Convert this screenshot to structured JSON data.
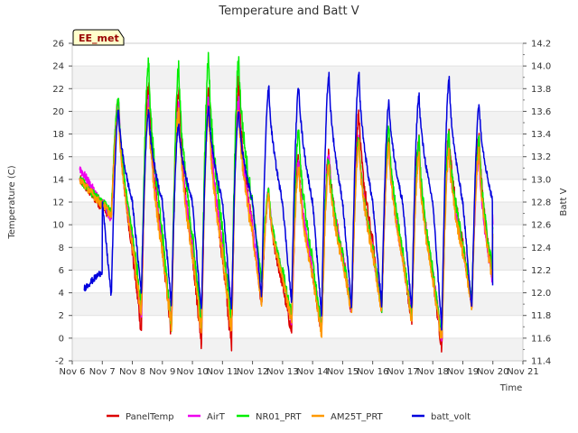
{
  "chart_data": {
    "type": "line",
    "title": "Temperature and Batt V",
    "xlabel": "Time",
    "ylabel": "Temperature (C)",
    "y2label": "Batt V",
    "site_label": "EE_met",
    "xlim": [
      6,
      21
    ],
    "ylim": [
      -2,
      26
    ],
    "y2lim": [
      11.4,
      14.2
    ],
    "x_ticks": [
      {
        "v": 6,
        "label": "Nov 6"
      },
      {
        "v": 7,
        "label": "Nov 7"
      },
      {
        "v": 8,
        "label": "Nov 8"
      },
      {
        "v": 9,
        "label": "Nov 9"
      },
      {
        "v": 10,
        "label": "Nov 10"
      },
      {
        "v": 11,
        "label": "Nov 11"
      },
      {
        "v": 12,
        "label": "Nov 12"
      },
      {
        "v": 13,
        "label": "Nov 13"
      },
      {
        "v": 14,
        "label": "Nov 14"
      },
      {
        "v": 15,
        "label": "Nov 15"
      },
      {
        "v": 16,
        "label": "Nov 16"
      },
      {
        "v": 17,
        "label": "Nov 17"
      },
      {
        "v": 18,
        "label": "Nov 18"
      },
      {
        "v": 19,
        "label": "Nov 19"
      },
      {
        "v": 20,
        "label": "Nov 20"
      },
      {
        "v": 21,
        "label": "Nov 21"
      }
    ],
    "y_ticks": [
      "-2",
      "0",
      "2",
      "4",
      "6",
      "8",
      "10",
      "12",
      "14",
      "16",
      "18",
      "20",
      "22",
      "24",
      "26"
    ],
    "y2_ticks": [
      "11.4",
      "11.6",
      "11.8",
      "12.0",
      "12.2",
      "12.4",
      "12.6",
      "12.8",
      "13.0",
      "13.2",
      "13.4",
      "13.6",
      "13.8",
      "14.0",
      "14.2"
    ],
    "grid": true,
    "legend_position": "bottom",
    "x_start": 6.25,
    "x_end": 20.0,
    "day_frac_min": 0.3,
    "day_frac_max": 0.55,
    "series": [
      {
        "name": "PanelTemp",
        "color": "#dd0000",
        "axis": "left",
        "start": 14.0,
        "end": 9.0,
        "mins": [
          10.5,
          0.6,
          0.3,
          -0.4,
          -0.7,
          2.8,
          0.5,
          0.3,
          2.3,
          2.3,
          1.5,
          -0.9,
          3.0,
          -2.0
        ],
        "maxs": [
          21.0,
          22.5,
          22.0,
          22.0,
          22.5,
          12.5,
          16.0,
          16.5,
          19.8,
          17.5,
          17.5,
          18.2,
          18.2,
          16.0
        ]
      },
      {
        "name": "AirT",
        "color": "#ee00ee",
        "axis": "left",
        "start": 15.0,
        "end": 10.5,
        "mins": [
          10.5,
          2.0,
          1.5,
          1.5,
          2.0,
          3.5,
          1.5,
          1.0,
          2.5,
          2.5,
          2.0,
          0.0,
          3.0,
          -1.0
        ],
        "maxs": [
          21.0,
          21.0,
          20.5,
          21.0,
          21.0,
          13.0,
          15.5,
          16.0,
          17.5,
          17.0,
          16.5,
          17.0,
          16.0,
          15.0
        ]
      },
      {
        "name": "NR01_PRT",
        "color": "#00ee00",
        "axis": "left",
        "start": 14.0,
        "end": 9.5,
        "mins": [
          11.0,
          3.0,
          1.0,
          1.0,
          1.2,
          5.0,
          2.0,
          0.6,
          2.6,
          2.6,
          1.8,
          -0.2,
          3.2,
          -0.3
        ],
        "maxs": [
          21.0,
          24.5,
          24.0,
          24.7,
          24.5,
          13.0,
          18.4,
          16.0,
          17.5,
          18.5,
          17.5,
          18.0,
          17.5,
          16.3
        ]
      },
      {
        "name": "AM25T_PRT",
        "color": "#ff9900",
        "axis": "left",
        "start": 14.0,
        "end": 9.0,
        "mins": [
          10.8,
          2.0,
          0.8,
          0.5,
          0.5,
          3.0,
          1.5,
          0.3,
          2.3,
          2.3,
          1.5,
          -0.5,
          2.8,
          -1.3
        ],
        "maxs": [
          20.0,
          20.5,
          20.3,
          20.3,
          20.3,
          12.5,
          15.0,
          15.0,
          17.0,
          17.0,
          16.0,
          16.5,
          16.5,
          15.5
        ]
      },
      {
        "name": "batt_volt",
        "color": "#0000dd",
        "axis": "right",
        "start_x": 6.4,
        "start": 12.04,
        "mins": [
          11.96,
          12.0,
          11.9,
          11.82,
          11.84,
          11.96,
          11.9,
          11.8,
          11.86,
          11.88,
          11.84,
          11.68,
          11.86,
          12.06
        ],
        "maxs": [
          13.6,
          13.6,
          13.48,
          13.64,
          13.6,
          13.8,
          13.82,
          13.92,
          13.92,
          13.68,
          13.74,
          13.88,
          13.66,
          14.1
        ],
        "plateau": 12.8,
        "end": 12.05
      }
    ]
  }
}
